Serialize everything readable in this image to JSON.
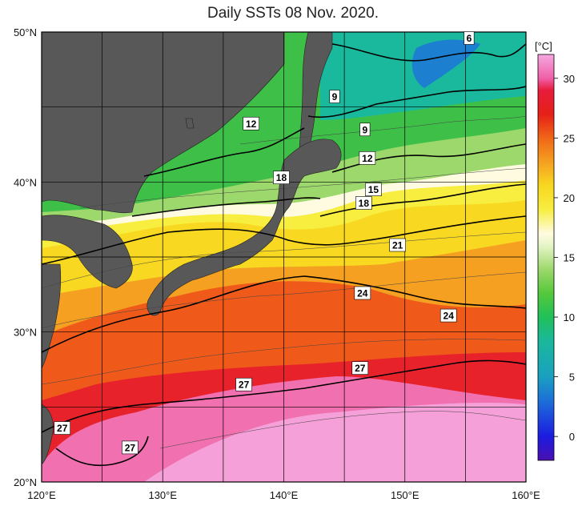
{
  "title": "Daily SSTs 08 Nov. 2020.",
  "units": "[°C]",
  "lat_labels": [
    "50°N",
    "40°N",
    "30°N",
    "20°N"
  ],
  "lon_labels": [
    "120°E",
    "130°E",
    "140°E",
    "150°E",
    "160°E"
  ],
  "colorbar": {
    "ticks": [
      "30",
      "25",
      "20",
      "15",
      "10",
      "5",
      "0"
    ],
    "range": [
      -2,
      32
    ],
    "stops": [
      {
        "v": -2,
        "c": "#4b0fb0"
      },
      {
        "v": 0,
        "c": "#1b1be0"
      },
      {
        "v": 3,
        "c": "#1d6fd8"
      },
      {
        "v": 5,
        "c": "#1aa0c0"
      },
      {
        "v": 8,
        "c": "#1ab89c"
      },
      {
        "v": 10,
        "c": "#21c05a"
      },
      {
        "v": 12,
        "c": "#55c83a"
      },
      {
        "v": 14,
        "c": "#9dd86c"
      },
      {
        "v": 16,
        "c": "#e6f5c8"
      },
      {
        "v": 17,
        "c": "#fffbe0"
      },
      {
        "v": 19,
        "c": "#f7ee40"
      },
      {
        "v": 21,
        "c": "#f8d820"
      },
      {
        "v": 23,
        "c": "#f5a020"
      },
      {
        "v": 25,
        "c": "#f06618"
      },
      {
        "v": 27,
        "c": "#e62018"
      },
      {
        "v": 29,
        "c": "#e81c3c"
      },
      {
        "v": 30,
        "c": "#f060a8"
      },
      {
        "v": 32,
        "c": "#f5a8e0"
      }
    ]
  },
  "contour_labels": [
    {
      "text": "6",
      "lon": 155.3,
      "lat": 49.6
    },
    {
      "text": "9",
      "lon": 144.2,
      "lat": 45.7
    },
    {
      "text": "9",
      "lon": 146.7,
      "lat": 43.5
    },
    {
      "text": "12",
      "lon": 137.3,
      "lat": 43.9
    },
    {
      "text": "12",
      "lon": 146.9,
      "lat": 41.6
    },
    {
      "text": "18",
      "lon": 139.8,
      "lat": 40.3
    },
    {
      "text": "15",
      "lon": 147.4,
      "lat": 39.5
    },
    {
      "text": "18",
      "lon": 146.6,
      "lat": 38.6
    },
    {
      "text": "21",
      "lon": 149.4,
      "lat": 35.8
    },
    {
      "text": "24",
      "lon": 146.5,
      "lat": 32.6
    },
    {
      "text": "24",
      "lon": 153.6,
      "lat": 31.1
    },
    {
      "text": "27",
      "lon": 146.3,
      "lat": 27.6
    },
    {
      "text": "27",
      "lon": 136.7,
      "lat": 26.5
    },
    {
      "text": "27",
      "lon": 121.7,
      "lat": 23.6
    },
    {
      "text": "27",
      "lon": 127.3,
      "lat": 22.3
    }
  ],
  "colors": {
    "land": "#585858",
    "contour": "#000000",
    "grid": "#000000"
  }
}
